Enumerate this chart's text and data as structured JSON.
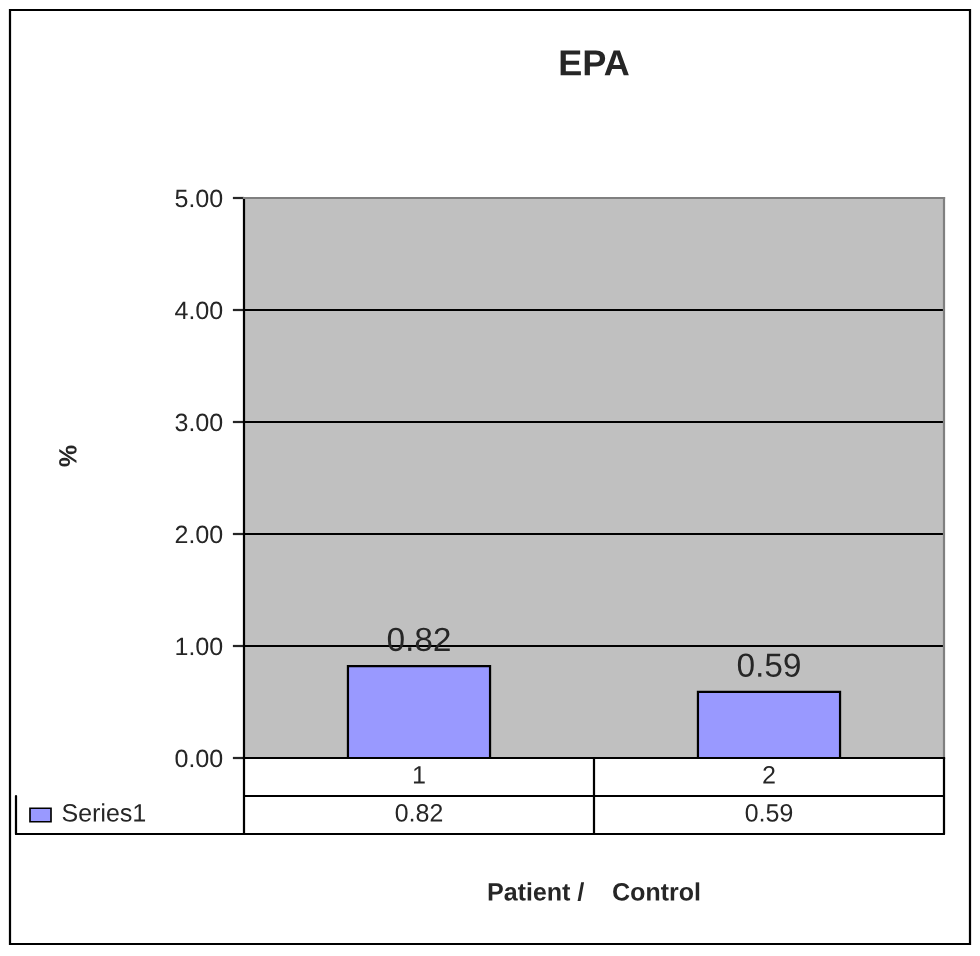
{
  "chart_data": {
    "type": "bar",
    "title": "EPA",
    "xlabel": "Patient /    Control",
    "ylabel": "%",
    "categories": [
      "1",
      "2"
    ],
    "series": [
      {
        "name": "Series1",
        "color": "#9999ff",
        "values": [
          0.82,
          0.59
        ],
        "value_labels": [
          "0.82",
          "0.59"
        ]
      }
    ],
    "ylim": [
      0,
      5
    ],
    "yticks": [
      {
        "value": 0,
        "label": "0.00"
      },
      {
        "value": 1,
        "label": "1.00"
      },
      {
        "value": 2,
        "label": "2.00"
      },
      {
        "value": 3,
        "label": "3.00"
      },
      {
        "value": 4,
        "label": "4.00"
      },
      {
        "value": 5,
        "label": "5.00"
      }
    ],
    "grid": "y",
    "legend": "bottom"
  }
}
